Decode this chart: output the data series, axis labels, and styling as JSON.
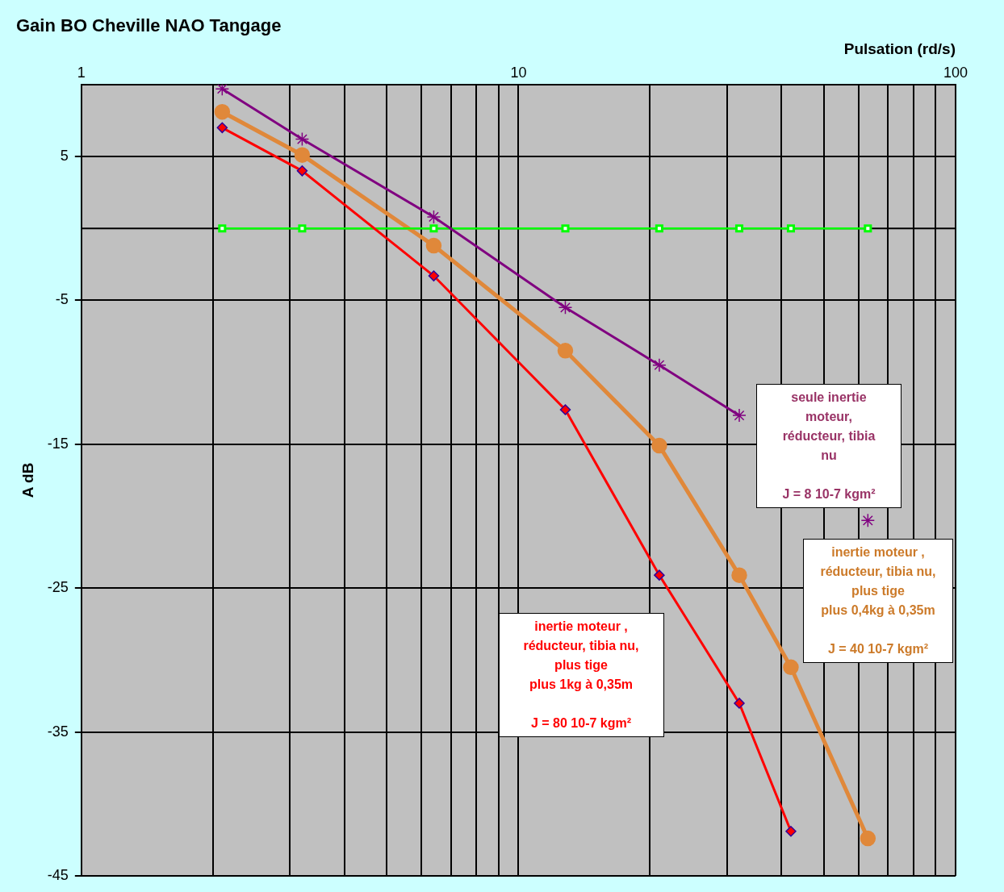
{
  "chart_data": {
    "type": "line",
    "title": "Gain BO Cheville NAO Tangage",
    "xlabel": "Pulsation (rd/s)",
    "ylabel": "A dB",
    "x": [
      2.1,
      3.2,
      6.4,
      12.8,
      21,
      32,
      42,
      63
    ],
    "series": [
      {
        "color": "#800080",
        "marker": "cross",
        "values": [
          9.7,
          6.2,
          0.8,
          -5.5,
          -9.5,
          -13,
          null,
          -20.3
        ]
      },
      {
        "color": "#ff0000",
        "marker": "diamond",
        "values": [
          7,
          4,
          -3.3,
          -12.6,
          -24.1,
          -33,
          -41.9,
          null
        ]
      },
      {
        "color": "#00ff00",
        "marker": "square",
        "values": [
          0,
          0,
          0,
          0,
          0,
          0,
          0,
          0
        ]
      },
      {
        "color": "#e0883a",
        "marker": "circle",
        "values": [
          8.1,
          5.1,
          -1.2,
          -8.5,
          -15.1,
          -24.1,
          -30.5,
          -42.4
        ]
      }
    ],
    "log": "x",
    "xlim": [
      1,
      100
    ],
    "xticks": [
      1,
      {
        "value": 2,
        "label": null
      },
      {
        "value": 3,
        "label": null
      },
      {
        "value": 4,
        "label": null
      },
      {
        "value": 5,
        "label": null
      },
      {
        "value": 6,
        "label": null
      },
      {
        "value": 7,
        "label": null
      },
      {
        "value": 8,
        "label": null
      },
      {
        "value": 9,
        "label": null
      },
      10,
      {
        "value": 20,
        "label": null
      },
      {
        "value": 30,
        "label": null
      },
      {
        "value": 40,
        "label": null
      },
      {
        "value": 50,
        "label": null
      },
      {
        "value": 60,
        "label": null
      },
      {
        "value": 70,
        "label": null
      },
      {
        "value": 80,
        "label": null
      },
      {
        "value": 90,
        "label": null
      },
      100
    ],
    "ylim": [
      -45,
      10
    ],
    "yticks": [
      -45,
      -35,
      -25,
      -15,
      -5,
      5
    ],
    "ref_lines": [
      {
        "axis": "y",
        "value": 0,
        "color": "#000000"
      }
    ],
    "grid": true,
    "legend": false,
    "line_style": "solid",
    "annotations": [
      "seule inertie\nmoteur,\nréducteur, tibia\nnu\n\nJ = 8 10-7 kgm²",
      "inertie moteur ,\nréducteur, tibia nu,\nplus tige\nplus 1kg à 0,35m\n\nJ  = 80 10-7  kgm²",
      "inertie moteur ,\nréducteur, tibia nu,\nplus tige\nplus 0,4kg à 0,35m\n\nJ  = 40 10-7  kgm²"
    ]
  }
}
